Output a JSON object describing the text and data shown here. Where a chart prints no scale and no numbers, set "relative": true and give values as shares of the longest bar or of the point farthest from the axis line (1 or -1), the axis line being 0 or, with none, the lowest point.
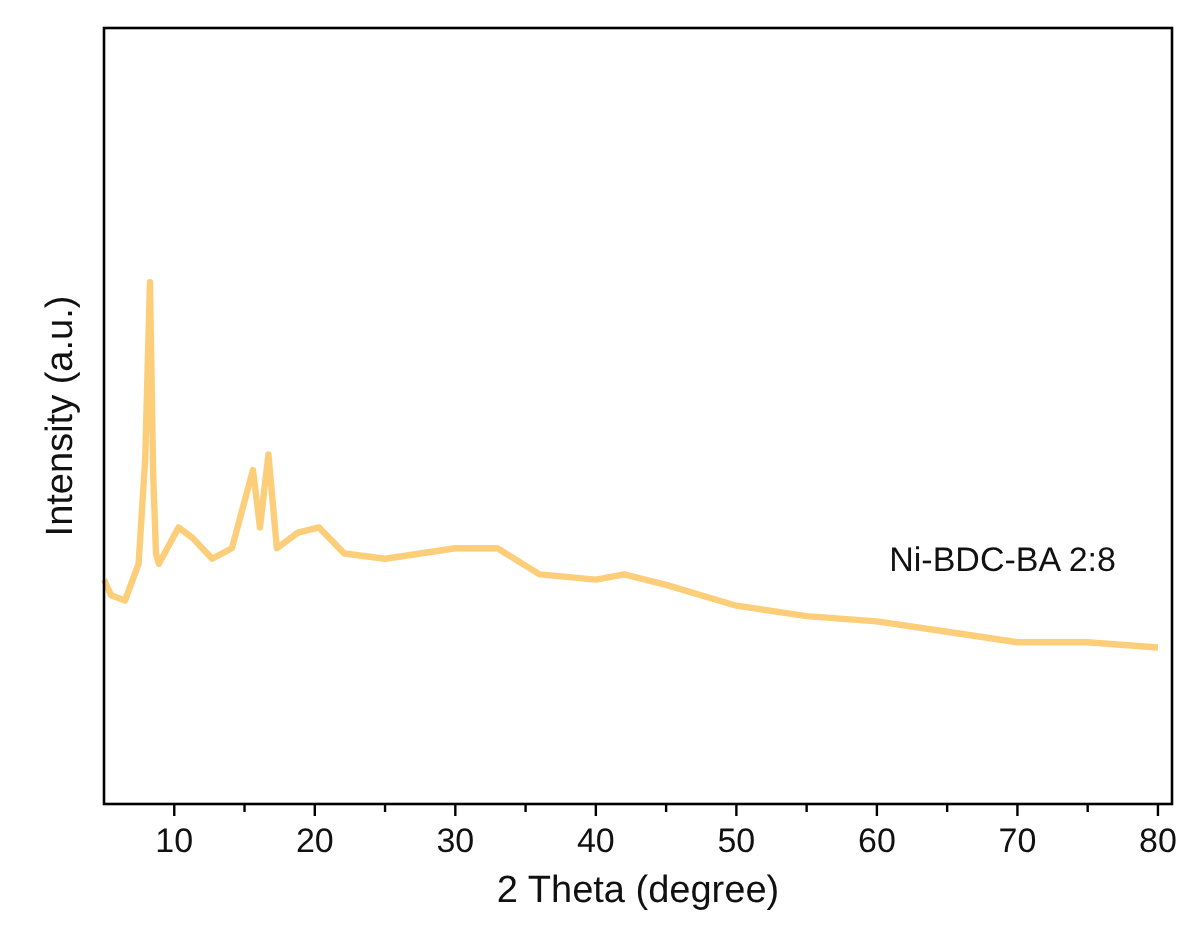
{
  "chart_data": {
    "type": "line",
    "xlabel": "2 Theta (degree)",
    "ylabel": "Intensity (a.u.)",
    "relative": true,
    "xlim": [
      5,
      81
    ],
    "xticks": [
      10,
      {
        "value": 15,
        "label": null
      },
      20,
      {
        "value": 25,
        "label": null
      },
      30,
      {
        "value": 35,
        "label": null
      },
      40,
      {
        "value": 45,
        "label": null
      },
      50,
      {
        "value": 55,
        "label": null
      },
      60,
      {
        "value": 65,
        "label": null
      },
      70,
      {
        "value": 75,
        "label": null
      },
      80
    ],
    "series": [
      {
        "name": "Ni-BDC-BA 2:8",
        "color": "#fdc96a",
        "x": [
          5,
          5.5,
          6.5,
          7.46,
          7.93,
          8.27,
          8.5,
          8.7,
          8.9,
          10.3,
          11.3,
          12.7,
          14.1,
          15.6,
          16.1,
          16.7,
          17.3,
          18.8,
          20.3,
          22.1,
          25,
          30,
          33,
          36,
          40,
          42,
          45,
          50,
          55,
          60,
          65,
          70,
          75,
          80
        ],
        "values": [
          0.43,
          0.4,
          0.39,
          0.46,
          0.66,
          1,
          0.63,
          0.48,
          0.46,
          0.53,
          0.51,
          0.47,
          0.49,
          0.64,
          0.53,
          0.67,
          0.49,
          0.52,
          0.53,
          0.48,
          0.47,
          0.49,
          0.49,
          0.44,
          0.43,
          0.44,
          0.42,
          0.38,
          0.36,
          0.35,
          0.33,
          0.31,
          0.31,
          0.3
        ]
      }
    ],
    "grid": false
  }
}
